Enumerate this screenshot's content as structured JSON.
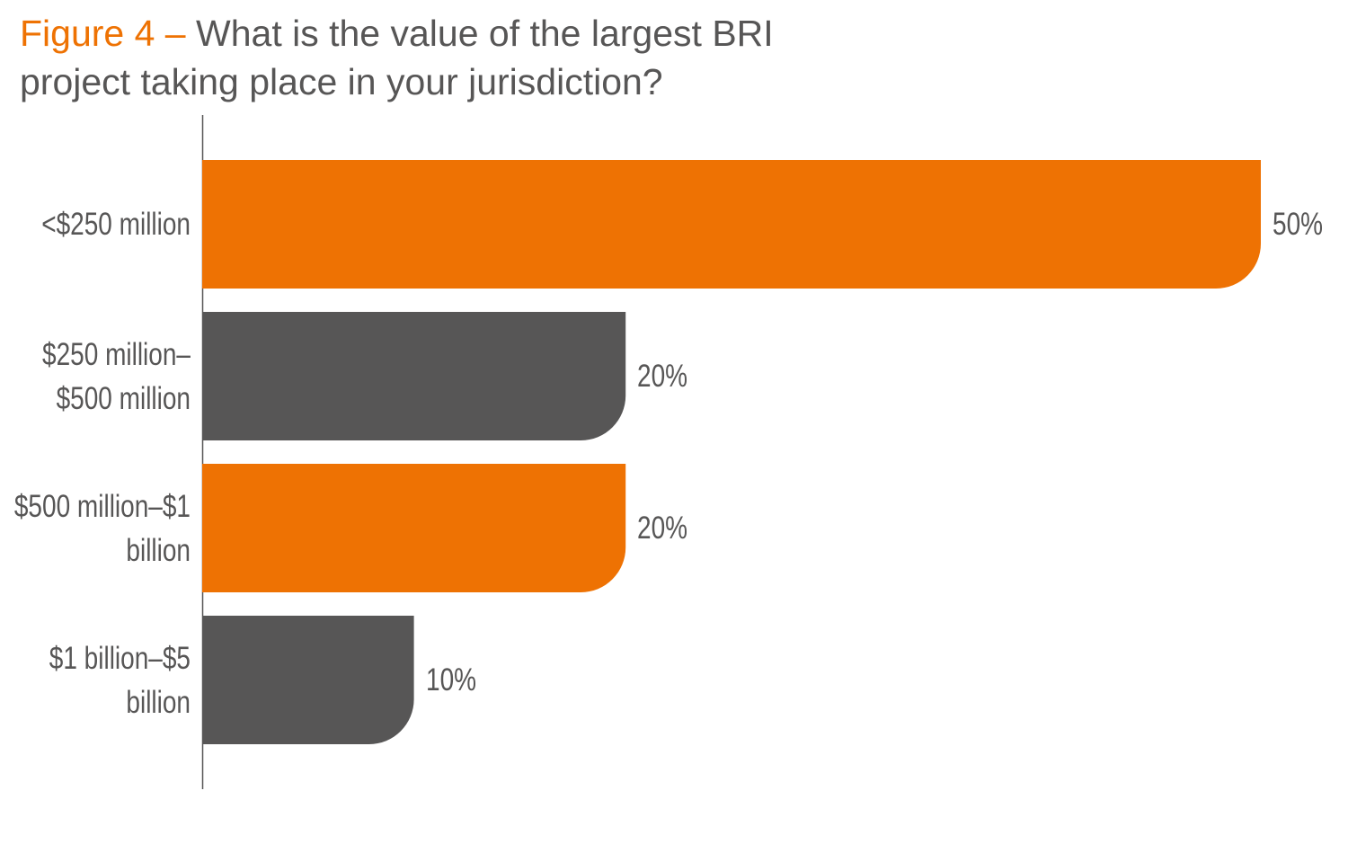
{
  "chart_data": {
    "type": "bar",
    "orientation": "horizontal",
    "figure_label": "Figure 4 –",
    "title": "What is the value of the largest BRI project taking place in your jurisdiction?",
    "categories": [
      "<$250 million",
      "$250 million–$500 million",
      "$500 million–$1 billion",
      "$1 billion–$5 billion"
    ],
    "values": [
      50,
      20,
      20,
      10
    ],
    "value_labels": [
      "50%",
      "20%",
      "20%",
      "10%"
    ],
    "colors": [
      "#ee7203",
      "#575656",
      "#ee7203",
      "#575656"
    ],
    "title_color": "#575656",
    "figure_label_color": "#ee7203"
  }
}
